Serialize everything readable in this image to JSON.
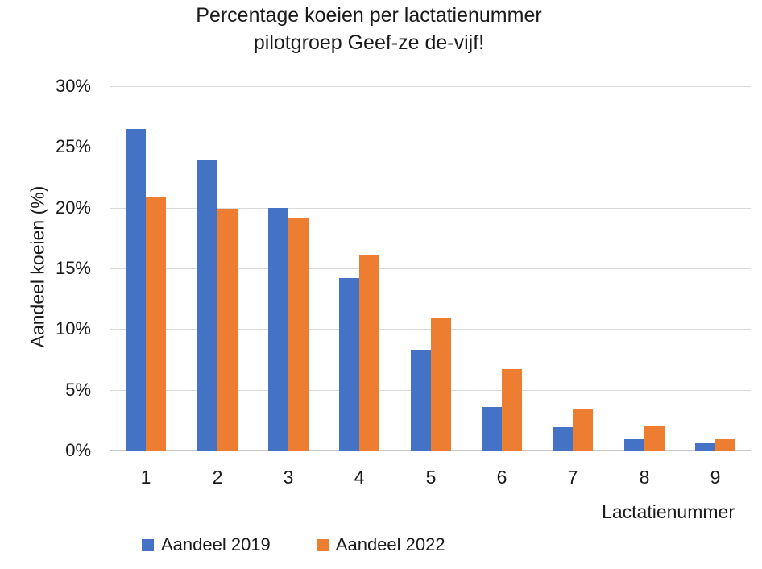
{
  "chart_data": {
    "type": "bar",
    "title": "Percentage koeien per lactatienummer pilotgroep Geef-ze de-vijf!",
    "title_lines": [
      "Percentage koeien per lactatienummer",
      "pilotgroep Geef-ze de-vijf!"
    ],
    "xlabel": "Lactatienummer",
    "ylabel": "Aandeel koeien (%)",
    "categories": [
      "1",
      "2",
      "3",
      "4",
      "5",
      "6",
      "7",
      "8",
      "9"
    ],
    "series": [
      {
        "name": "Aandeel 2019",
        "color": "#4472C4",
        "values": [
          26.5,
          23.9,
          20.0,
          14.2,
          8.3,
          3.6,
          1.9,
          0.9,
          0.6
        ]
      },
      {
        "name": "Aandeel 2022",
        "color": "#ED7D31",
        "values": [
          20.9,
          19.9,
          19.1,
          16.1,
          10.9,
          6.7,
          3.4,
          2.0,
          0.9
        ]
      }
    ],
    "ylim": [
      0,
      30
    ],
    "ytick_step": 5,
    "ytick_labels": [
      "0%",
      "5%",
      "10%",
      "15%",
      "20%",
      "25%",
      "30%"
    ],
    "grid": true,
    "legend_position": "bottom-left",
    "colors": {
      "background": "#FFFFFF",
      "gridline": "#D9D9D9",
      "axis_line": "#C8C8C8",
      "text": "#1A1A1A"
    }
  }
}
